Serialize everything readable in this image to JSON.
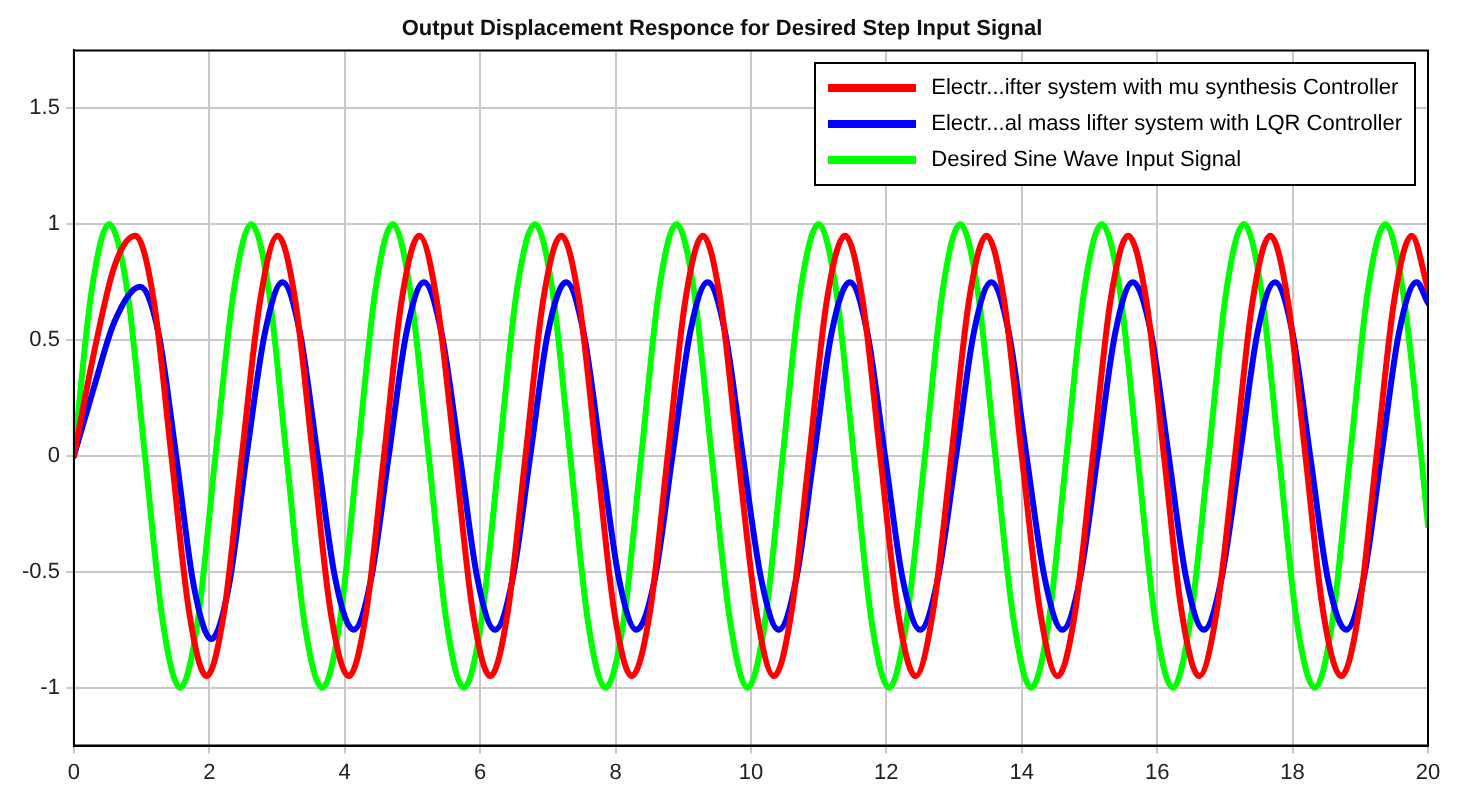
{
  "chart_data": {
    "type": "line",
    "title": "Output Displacement Responce for Desired Step Input Signal",
    "xlim": [
      0,
      20
    ],
    "xticks": [
      0,
      2,
      4,
      6,
      8,
      10,
      12,
      14,
      16,
      18,
      20
    ],
    "ylim": [
      -1.25,
      1.75
    ],
    "yticks": [
      {
        "value": -1,
        "label": "-1"
      },
      {
        "value": -0.5,
        "label": "-0.5"
      },
      0,
      0.5,
      1,
      1.5
    ],
    "grid": true,
    "legend": "top right",
    "marker": "none",
    "line_style": "solid",
    "series": [
      {
        "name": "Electr...ifter system with mu synthesis Controller",
        "color": "#ff0000",
        "x": [
          0,
          0.3,
          0.6,
          0.91,
          1.18,
          1.44,
          1.7,
          1.96,
          2.22,
          2.48,
          2.75,
          3.01,
          3.27,
          3.53,
          3.79,
          4.06,
          4.32,
          4.58,
          4.84,
          5.1,
          5.36,
          5.63,
          5.89,
          6.15,
          6.41,
          6.67,
          6.93,
          7.2,
          7.46,
          7.72,
          7.98,
          8.24,
          8.51,
          8.77,
          9.03,
          9.29,
          9.55,
          9.81,
          10.08,
          10.34,
          10.6,
          10.86,
          11.12,
          11.39,
          11.65,
          11.91,
          12.17,
          12.43,
          12.69,
          12.96,
          13.22,
          13.48,
          13.74,
          14.0,
          14.27,
          14.53,
          14.79,
          15.05,
          15.31,
          15.57,
          15.84,
          16.1,
          16.36,
          16.62,
          16.88,
          17.15,
          17.41,
          17.67,
          17.93,
          18.19,
          18.45,
          18.72,
          18.98,
          19.24,
          19.5,
          19.76,
          20
        ],
        "values": [
          0,
          0.45,
          0.82,
          0.95,
          0.67,
          0,
          -0.67,
          -0.95,
          -0.67,
          0,
          0.67,
          0.95,
          0.67,
          0,
          -0.67,
          -0.95,
          -0.67,
          0,
          0.67,
          0.95,
          0.67,
          0,
          -0.67,
          -0.95,
          -0.67,
          0,
          0.67,
          0.95,
          0.67,
          0,
          -0.67,
          -0.95,
          -0.67,
          0,
          0.67,
          0.95,
          0.67,
          0,
          -0.67,
          -0.95,
          -0.67,
          0,
          0.67,
          0.95,
          0.67,
          0,
          -0.67,
          -0.95,
          -0.67,
          0,
          0.67,
          0.95,
          0.67,
          0,
          -0.67,
          -0.95,
          -0.67,
          0,
          0.67,
          0.95,
          0.67,
          0,
          -0.67,
          -0.95,
          -0.67,
          0,
          0.67,
          0.95,
          0.67,
          0,
          -0.67,
          -0.95,
          -0.67,
          0,
          0.67,
          0.95,
          0.72
        ]
      },
      {
        "name": "Electr...al mass lifter system with LQR Controller",
        "color": "#0000ff",
        "x": [
          0,
          0.3,
          0.6,
          0.98,
          1.25,
          1.51,
          1.77,
          2.03,
          2.29,
          2.55,
          2.82,
          3.08,
          3.34,
          3.6,
          3.86,
          4.13,
          4.39,
          4.65,
          4.91,
          5.17,
          5.43,
          5.7,
          5.96,
          6.22,
          6.48,
          6.74,
          7.0,
          7.27,
          7.53,
          7.79,
          8.05,
          8.31,
          8.58,
          8.84,
          9.1,
          9.36,
          9.62,
          9.88,
          10.15,
          10.41,
          10.67,
          10.93,
          11.19,
          11.46,
          11.72,
          11.98,
          12.24,
          12.5,
          12.76,
          13.03,
          13.29,
          13.55,
          13.81,
          14.07,
          14.34,
          14.6,
          14.86,
          15.12,
          15.38,
          15.64,
          15.91,
          16.17,
          16.43,
          16.69,
          16.95,
          17.22,
          17.48,
          17.74,
          18.0,
          18.26,
          18.52,
          18.79,
          19.05,
          19.31,
          19.57,
          19.83,
          20
        ],
        "values": [
          0,
          0.3,
          0.58,
          0.73,
          0.53,
          0,
          -0.56,
          -0.79,
          -0.56,
          0,
          0.53,
          0.75,
          0.53,
          0,
          -0.53,
          -0.75,
          -0.53,
          0,
          0.53,
          0.75,
          0.53,
          0,
          -0.53,
          -0.75,
          -0.53,
          0,
          0.53,
          0.75,
          0.53,
          0,
          -0.53,
          -0.75,
          -0.53,
          0,
          0.53,
          0.75,
          0.53,
          0,
          -0.53,
          -0.75,
          -0.53,
          0,
          0.53,
          0.75,
          0.53,
          0,
          -0.53,
          -0.75,
          -0.53,
          0,
          0.53,
          0.75,
          0.53,
          0,
          -0.53,
          -0.75,
          -0.53,
          0,
          0.53,
          0.75,
          0.53,
          0,
          -0.53,
          -0.75,
          -0.53,
          0,
          0.53,
          0.75,
          0.53,
          0,
          -0.53,
          -0.75,
          -0.53,
          0,
          0.53,
          0.75,
          0.66
        ]
      },
      {
        "name": "Desired Sine Wave Input Signal",
        "color": "#00ff00",
        "x": [
          0,
          0.26,
          0.52,
          0.79,
          1.05,
          1.31,
          1.57,
          1.83,
          2.09,
          2.36,
          2.62,
          2.88,
          3.14,
          3.4,
          3.67,
          3.93,
          4.19,
          4.45,
          4.71,
          4.97,
          5.24,
          5.5,
          5.76,
          6.02,
          6.28,
          6.54,
          6.81,
          7.07,
          7.33,
          7.59,
          7.85,
          8.12,
          8.38,
          8.64,
          8.9,
          9.16,
          9.42,
          9.69,
          9.95,
          10.21,
          10.47,
          10.73,
          11.0,
          11.26,
          11.52,
          11.78,
          12.04,
          12.3,
          12.57,
          12.83,
          13.09,
          13.35,
          13.61,
          13.88,
          14.14,
          14.4,
          14.66,
          14.92,
          15.18,
          15.45,
          15.71,
          15.97,
          16.23,
          16.49,
          16.76,
          17.02,
          17.28,
          17.54,
          17.8,
          18.06,
          18.33,
          18.59,
          18.85,
          19.11,
          19.37,
          19.63,
          19.9,
          20
        ],
        "values": [
          0,
          0.71,
          1,
          0.71,
          0,
          -0.71,
          -1,
          -0.71,
          0,
          0.71,
          1,
          0.71,
          0,
          -0.71,
          -1,
          -0.71,
          0,
          0.71,
          1,
          0.71,
          0,
          -0.71,
          -1,
          -0.71,
          0,
          0.71,
          1,
          0.71,
          0,
          -0.71,
          -1,
          -0.71,
          0,
          0.71,
          1,
          0.71,
          0,
          -0.71,
          -1,
          -0.71,
          0,
          0.71,
          1,
          0.71,
          0,
          -0.71,
          -1,
          -0.71,
          0,
          0.71,
          1,
          0.71,
          0,
          -0.71,
          -1,
          -0.71,
          0,
          0.71,
          1,
          0.71,
          0,
          -0.71,
          -1,
          -0.71,
          0,
          0.71,
          1,
          0.71,
          0,
          -0.71,
          -1,
          -0.71,
          0,
          0.71,
          1,
          0.71,
          0,
          -0.3
        ]
      }
    ]
  }
}
